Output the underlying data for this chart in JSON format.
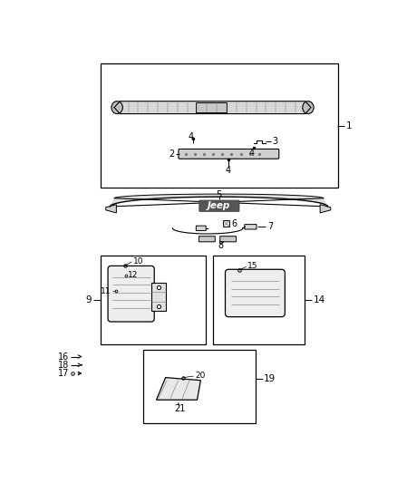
{
  "bg_color": "#ffffff",
  "line_color": "#000000",
  "gray_color": "#777777",
  "light_gray": "#cccccc",
  "fig_width": 4.38,
  "fig_height": 5.33
}
